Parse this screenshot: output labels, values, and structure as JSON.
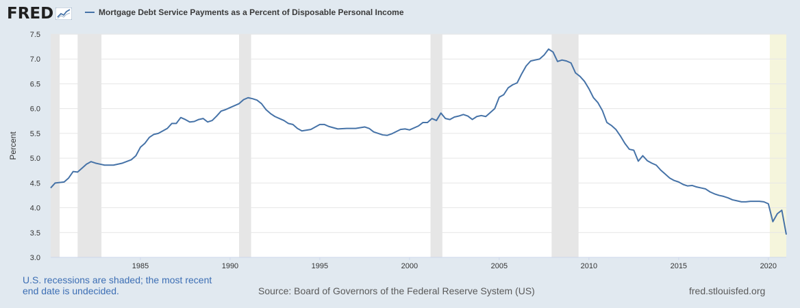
{
  "logo": {
    "text": "FRED",
    "icon": "fred-chart-icon"
  },
  "legend": {
    "label": "Mortgage Debt Service Payments as a Percent of Disposable Personal Income",
    "color": "#4572a7"
  },
  "footer": {
    "note": "U.S. recessions are shaded; the most recent end date is undecided.",
    "source": "Source: Board of Governors of the Federal Reserve System (US)",
    "site": "fred.stlouisfed.org"
  },
  "colors": {
    "line": "#4572a7",
    "recession": "#e6e6e6",
    "recession_undecided": "#f5f5dc",
    "plot_bg": "#ffffff",
    "page_bg": "#e1e9f0",
    "grid": "#e6e6e6"
  },
  "chart_data": {
    "type": "line",
    "title": "",
    "xlabel": "",
    "ylabel": "Percent",
    "xlim": [
      1980.0,
      2021.0
    ],
    "ylim": [
      3.0,
      7.5
    ],
    "y_ticks": [
      3.0,
      3.5,
      4.0,
      4.5,
      5.0,
      5.5,
      6.0,
      6.5,
      7.0,
      7.5
    ],
    "x_ticks": [
      1985,
      1990,
      1995,
      2000,
      2005,
      2010,
      2015,
      2020
    ],
    "y_tick_labels": [
      "3.0",
      "3.5",
      "4.0",
      "4.5",
      "5.0",
      "5.5",
      "6.0",
      "6.5",
      "7.0",
      "7.5"
    ],
    "x_tick_labels": [
      "1985",
      "1990",
      "1995",
      "2000",
      "2005",
      "2010",
      "2015",
      "2020"
    ],
    "grid": true,
    "recessions": [
      {
        "start": 1980.0,
        "end": 1980.5
      },
      {
        "start": 1981.5,
        "end": 1982.83
      },
      {
        "start": 1990.5,
        "end": 1991.17
      },
      {
        "start": 2001.17,
        "end": 2001.83
      },
      {
        "start": 2007.92,
        "end": 2009.42
      },
      {
        "start": 2020.08,
        "end": 2021.0,
        "undecided": true
      }
    ],
    "series": [
      {
        "x": [
          1980.0,
          1980.25,
          1980.75,
          1981.0,
          1981.25,
          1981.5,
          1981.75,
          1982.0,
          1982.25,
          1982.5,
          1982.75,
          1983.0,
          1983.5,
          1984.0,
          1984.5,
          1984.75,
          1985.0,
          1985.25,
          1985.5,
          1985.75,
          1986.0,
          1986.25,
          1986.5,
          1986.75,
          1987.0,
          1987.25,
          1987.5,
          1987.75,
          1988.0,
          1988.25,
          1988.5,
          1988.75,
          1989.0,
          1989.25,
          1989.5,
          1989.75,
          1990.0,
          1990.25,
          1990.5,
          1990.75,
          1991.0,
          1991.25,
          1991.5,
          1991.75,
          1992.0,
          1992.25,
          1992.5,
          1992.75,
          1993.0,
          1993.25,
          1993.5,
          1993.75,
          1994.0,
          1994.5,
          1995.0,
          1995.25,
          1995.5,
          1996.0,
          1996.5,
          1997.0,
          1997.5,
          1997.75,
          1998.0,
          1998.5,
          1998.75,
          1999.0,
          1999.5,
          1999.75,
          2000.0,
          2000.5,
          2000.75,
          2001.0,
          2001.25,
          2001.5,
          2001.75,
          2002.0,
          2002.25,
          2002.5,
          2002.75,
          2003.0,
          2003.25,
          2003.5,
          2003.75,
          2004.0,
          2004.25,
          2004.5,
          2004.75,
          2005.0,
          2005.25,
          2005.5,
          2005.75,
          2006.0,
          2006.25,
          2006.5,
          2006.75,
          2007.0,
          2007.25,
          2007.5,
          2007.75,
          2008.0,
          2008.25,
          2008.5,
          2008.75,
          2009.0,
          2009.25,
          2009.5,
          2009.75,
          2010.0,
          2010.25,
          2010.5,
          2010.75,
          2011.0,
          2011.25,
          2011.5,
          2011.75,
          2012.0,
          2012.25,
          2012.5,
          2012.75,
          2013.0,
          2013.25,
          2013.5,
          2013.75,
          2014.0,
          2014.25,
          2014.5,
          2014.75,
          2015.0,
          2015.25,
          2015.5,
          2015.75,
          2016.0,
          2016.25,
          2016.5,
          2016.75,
          2017.0,
          2017.25,
          2017.5,
          2017.75,
          2018.0,
          2018.25,
          2018.5,
          2018.75,
          2019.0,
          2019.25,
          2019.5,
          2019.75,
          2020.0,
          2020.25,
          2020.5,
          2020.75,
          2021.0
        ],
        "values": [
          4.4,
          4.5,
          4.52,
          4.6,
          4.73,
          4.72,
          4.8,
          4.88,
          4.93,
          4.9,
          4.88,
          4.86,
          4.86,
          4.9,
          4.97,
          5.05,
          5.22,
          5.3,
          5.42,
          5.48,
          5.5,
          5.55,
          5.6,
          5.7,
          5.7,
          5.82,
          5.78,
          5.73,
          5.74,
          5.78,
          5.8,
          5.73,
          5.76,
          5.85,
          5.95,
          5.98,
          6.02,
          6.06,
          6.1,
          6.18,
          6.22,
          6.2,
          6.17,
          6.1,
          5.98,
          5.9,
          5.84,
          5.8,
          5.76,
          5.7,
          5.68,
          5.6,
          5.55,
          5.58,
          5.68,
          5.68,
          5.64,
          5.59,
          5.6,
          5.6,
          5.63,
          5.6,
          5.53,
          5.47,
          5.46,
          5.49,
          5.58,
          5.59,
          5.57,
          5.65,
          5.72,
          5.72,
          5.8,
          5.76,
          5.91,
          5.8,
          5.78,
          5.83,
          5.85,
          5.88,
          5.85,
          5.78,
          5.84,
          5.86,
          5.84,
          5.92,
          6.0,
          6.23,
          6.28,
          6.42,
          6.48,
          6.52,
          6.7,
          6.86,
          6.96,
          6.98,
          7.0,
          7.08,
          7.2,
          7.14,
          6.95,
          6.98,
          6.96,
          6.92,
          6.72,
          6.65,
          6.55,
          6.4,
          6.22,
          6.12,
          5.96,
          5.72,
          5.66,
          5.58,
          5.45,
          5.3,
          5.18,
          5.16,
          4.94,
          5.05,
          4.95,
          4.9,
          4.86,
          4.76,
          4.68,
          4.6,
          4.55,
          4.52,
          4.47,
          4.44,
          4.45,
          4.42,
          4.4,
          4.38,
          4.32,
          4.28,
          4.25,
          4.23,
          4.2,
          4.16,
          4.14,
          4.12,
          4.12,
          4.13,
          4.13,
          4.13,
          4.12,
          4.08,
          3.72,
          3.88,
          3.95,
          3.46
        ]
      }
    ]
  }
}
